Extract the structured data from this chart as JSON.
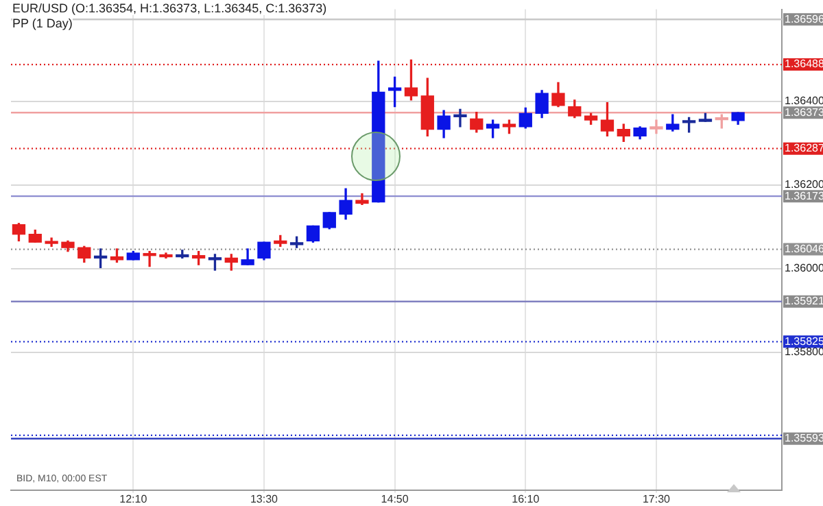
{
  "chart_data": {
    "type": "candlestick",
    "title": "EUR/USD (O:1.36354, H:1.36373, L:1.36345, C:1.36373)",
    "subtitle": "PP (1 Day)",
    "annotations": [
      "BID, M10, 00:00 EST"
    ],
    "x": [
      11,
      11.1667,
      11.3333,
      11.5,
      11.6667,
      11.8333,
      12,
      12.1667,
      12.3333,
      12.5,
      12.6667,
      12.8333,
      13,
      13.1667,
      13.3333,
      13.5,
      13.6667,
      13.8333,
      14,
      14.1667,
      14.3333,
      14.5,
      14.6667,
      14.8333,
      15,
      15.1667,
      15.3333,
      15.5,
      15.6667,
      15.8333,
      16,
      16.1667,
      16.3333,
      16.5,
      16.6667,
      16.8333,
      17,
      17.1667,
      17.3333,
      17.5,
      17.6667,
      17.8333,
      18,
      18.1667,
      18.3333
    ],
    "ohlc": [
      [
        1.36105,
        1.36108,
        1.36066,
        1.36082
      ],
      [
        1.36082,
        1.36092,
        1.36063,
        1.36063
      ],
      [
        1.36063,
        1.36073,
        1.36053,
        1.3606
      ],
      [
        1.36063,
        1.36066,
        1.36041,
        1.3605
      ],
      [
        1.3605,
        1.36053,
        1.36015,
        1.36025
      ],
      [
        1.36025,
        1.36047,
        1.36002,
        1.36028
      ],
      [
        1.36028,
        1.36047,
        1.36015,
        1.36021
      ],
      [
        1.36021,
        1.36041,
        1.36021,
        1.36037
      ],
      [
        1.36034,
        1.36041,
        1.36005,
        1.36031
      ],
      [
        1.36031,
        1.36037,
        1.36025,
        1.36028
      ],
      [
        1.36028,
        1.36044,
        1.36025,
        1.36031
      ],
      [
        1.36031,
        1.36041,
        1.36009,
        1.36025
      ],
      [
        1.36021,
        1.36034,
        1.35996,
        1.36025
      ],
      [
        1.36025,
        1.36034,
        1.35996,
        1.36015
      ],
      [
        1.36009,
        1.36047,
        1.36009,
        1.36021
      ],
      [
        1.36025,
        1.36063,
        1.36021,
        1.36063
      ],
      [
        1.36066,
        1.36079,
        1.36053,
        1.3606
      ],
      [
        1.36057,
        1.36076,
        1.3605,
        1.3606
      ],
      [
        1.36066,
        1.36102,
        1.36063,
        1.36102
      ],
      [
        1.36098,
        1.36134,
        1.36095,
        1.36134
      ],
      [
        1.3613,
        1.36191,
        1.36118,
        1.36163
      ],
      [
        1.36163,
        1.36179,
        1.36153,
        1.36156
      ],
      [
        1.36159,
        1.36496,
        1.36159,
        1.36422
      ],
      [
        1.36426,
        1.36458,
        1.36387,
        1.36432
      ],
      [
        1.36432,
        1.36499,
        1.36403,
        1.36413
      ],
      [
        1.36413,
        1.36455,
        1.36317,
        1.36333
      ],
      [
        1.36333,
        1.36378,
        1.36313,
        1.36365
      ],
      [
        1.36363,
        1.36381,
        1.36339,
        1.36367
      ],
      [
        1.36358,
        1.36374,
        1.36326,
        1.36333
      ],
      [
        1.36336,
        1.36355,
        1.36313,
        1.36345
      ],
      [
        1.36345,
        1.36355,
        1.36323,
        1.36339
      ],
      [
        1.36339,
        1.36384,
        1.36336,
        1.36371
      ],
      [
        1.36371,
        1.36426,
        1.36361,
        1.36419
      ],
      [
        1.36419,
        1.36445,
        1.36387,
        1.3639
      ],
      [
        1.36387,
        1.36403,
        1.36361,
        1.36365
      ],
      [
        1.36365,
        1.36371,
        1.36345,
        1.36355
      ],
      [
        1.36355,
        1.36397,
        1.36317,
        1.36329
      ],
      [
        1.36333,
        1.36345,
        1.36304,
        1.36317
      ],
      [
        1.36317,
        1.36339,
        1.3631,
        1.36336
      ],
      [
        1.36338,
        1.36355,
        1.36323,
        1.36334
      ],
      [
        1.36333,
        1.36368,
        1.36329,
        1.36345
      ],
      [
        1.36349,
        1.36361,
        1.36326,
        1.36352
      ],
      [
        1.36352,
        1.36371,
        1.36352,
        1.36355
      ],
      [
        1.36358,
        1.36368,
        1.36336,
        1.36356
      ],
      [
        1.36354,
        1.36373,
        1.36345,
        1.36373
      ]
    ],
    "colors": [
      "#e61e1e",
      "#e61e1e",
      "#e61e1e",
      "#e61e1e",
      "#e61e1e",
      "#1a2a9a",
      "#e61e1e",
      "#0a14e6",
      "#e61e1e",
      "#e61e1e",
      "#1a2a9a",
      "#e61e1e",
      "#1a2a9a",
      "#e61e1e",
      "#0a14e6",
      "#0a14e6",
      "#e61e1e",
      "#1a2a9a",
      "#0a14e6",
      "#0a14e6",
      "#0a14e6",
      "#e61e1e",
      "#0a14e6",
      "#0a14e6",
      "#e61e1e",
      "#e61e1e",
      "#0a14e6",
      "#1a2a9a",
      "#e61e1e",
      "#0a14e6",
      "#e61e1e",
      "#0a14e6",
      "#0a14e6",
      "#e61e1e",
      "#e61e1e",
      "#e61e1e",
      "#e61e1e",
      "#e61e1e",
      "#0a14e6",
      "#f0a0a0",
      "#0a14e6",
      "#1a2a9a",
      "#1a2a9a",
      "#f0a0a0",
      "#0a14e6"
    ],
    "xlim": [
      10.92,
      18.78
    ],
    "xticks": [
      {
        "value": 12.1667,
        "label": "12:10"
      },
      {
        "value": 13.5,
        "label": "13:30"
      },
      {
        "value": 14.8333,
        "label": "14:50"
      },
      {
        "value": 16.1667,
        "label": "16:10"
      },
      {
        "value": 17.5,
        "label": "17:30"
      }
    ],
    "ylim": [
      1.3547,
      1.3662
    ],
    "yticks": [
      {
        "value": 1.358,
        "label": "1.35800"
      },
      {
        "value": 1.36,
        "label": "1.36000"
      },
      {
        "value": 1.362,
        "label": "1.36200"
      },
      {
        "value": 1.364,
        "label": "1.36400"
      }
    ],
    "grid": true,
    "legend": false,
    "ref_lines": [
      {
        "axis": "y",
        "value": 1.36596,
        "label": "1.36596",
        "color": "#c8c8c8",
        "line_style": "solid"
      },
      {
        "axis": "y",
        "value": 1.36488,
        "label": "1.36488",
        "color": "#e02020",
        "line_style": "dotted"
      },
      {
        "axis": "y",
        "value": 1.36373,
        "label": "1.36373",
        "color": "#f0a0a0",
        "line_style": "solid"
      },
      {
        "axis": "y",
        "value": 1.36287,
        "label": "1.36287",
        "color": "#e02020",
        "line_style": "dotted"
      },
      {
        "axis": "y",
        "value": 1.36173,
        "label": "1.36173",
        "color": "#8c8cd0",
        "line_style": "solid"
      },
      {
        "axis": "y",
        "value": 1.36046,
        "label": "1.36046",
        "color": "#909090",
        "line_style": "dotted"
      },
      {
        "axis": "y",
        "value": 1.35921,
        "label": "1.35921",
        "color": "#8080c0",
        "line_style": "solid"
      },
      {
        "axis": "y",
        "value": 1.35825,
        "label": "1.35825",
        "color": "#2030d0",
        "line_style": "dotted"
      },
      {
        "axis": "y",
        "value": 1.35601,
        "label": null,
        "color": "#2030d0",
        "line_style": "dotted"
      },
      {
        "axis": "y",
        "value": 1.35593,
        "label": "1.35593",
        "color": "#3040c0",
        "line_style": "solid"
      }
    ]
  }
}
